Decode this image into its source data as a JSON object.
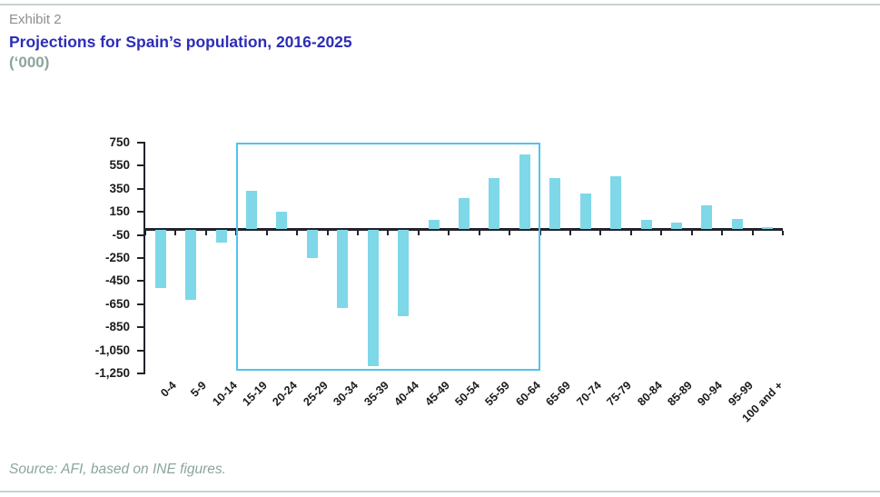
{
  "header": {
    "exhibit_label": "Exhibit 2",
    "title": "Projections for Spain’s population, 2016-2025",
    "units_label": "(‘000)"
  },
  "footer": {
    "source": "Source: AFI, based on INE figures."
  },
  "chart_data": {
    "type": "bar",
    "title": "Projections for Spain’s population, 2016-2025",
    "subtitle": "(‘000)",
    "xlabel": "",
    "ylabel": "",
    "categories": [
      "0-4",
      "5-9",
      "10-14",
      "15-19",
      "20-24",
      "25-29",
      "30-34",
      "35-39",
      "40-44",
      "45-49",
      "50-54",
      "55-59",
      "60-64",
      "65-69",
      "70-74",
      "75-79",
      "80-84",
      "85-89",
      "90-94",
      "95-99",
      "100 and +"
    ],
    "values": [
      -510,
      -610,
      -120,
      335,
      150,
      -250,
      -680,
      -1190,
      -750,
      80,
      270,
      440,
      650,
      440,
      310,
      455,
      80,
      60,
      210,
      90,
      20
    ],
    "ylim": [
      -1250,
      750
    ],
    "ytick_step": 200,
    "ytick_labels": [
      "750",
      "550",
      "350",
      "150",
      "-50",
      "-250",
      "-450",
      "-650",
      "-850",
      "-1,050",
      "-1,250"
    ],
    "grid": false,
    "legend": "none",
    "bar_color": "#7ed8e8",
    "axis_color": "#22222c",
    "highlight_box": {
      "from_category": "15-19",
      "to_category": "60-64",
      "border_color": "#50c4ea"
    }
  }
}
